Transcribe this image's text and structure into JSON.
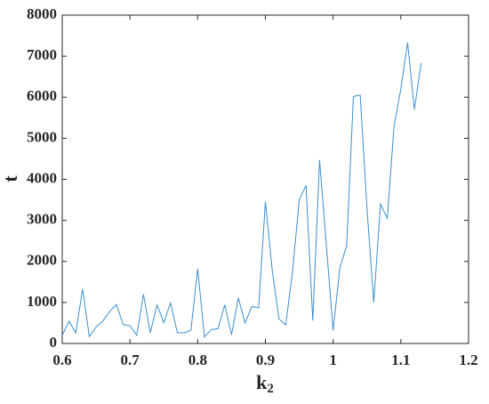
{
  "chart_data": {
    "type": "line",
    "xlabel": "k",
    "xlabel_subscript": "2",
    "ylabel": "t",
    "x": [
      0.6,
      0.61,
      0.62,
      0.63,
      0.64,
      0.65,
      0.66,
      0.67,
      0.68,
      0.69,
      0.7,
      0.71,
      0.72,
      0.73,
      0.74,
      0.75,
      0.76,
      0.77,
      0.78,
      0.79,
      0.8,
      0.81,
      0.82,
      0.83,
      0.84,
      0.85,
      0.86,
      0.87,
      0.88,
      0.89,
      0.9,
      0.91,
      0.92,
      0.93,
      0.94,
      0.95,
      0.96,
      0.97,
      0.98,
      0.99,
      1.0,
      1.01,
      1.02,
      1.03,
      1.04,
      1.05,
      1.06,
      1.07,
      1.08,
      1.09,
      1.1,
      1.11,
      1.12,
      1.13
    ],
    "series": [
      {
        "color": "#3a8fd0",
        "values": [
          200,
          540,
          260,
          1330,
          170,
          400,
          550,
          780,
          950,
          460,
          430,
          200,
          1200,
          260,
          940,
          510,
          990,
          260,
          260,
          320,
          1820,
          160,
          340,
          360,
          940,
          210,
          1110,
          500,
          900,
          870,
          3450,
          1800,
          600,
          450,
          1750,
          3500,
          3850,
          560,
          4470,
          2400,
          320,
          1850,
          2380,
          6020,
          6050,
          3300,
          1000,
          3400,
          3050,
          5300,
          6200,
          7330,
          5700,
          6830
        ]
      }
    ],
    "xlim": [
      0.6,
      1.2
    ],
    "xticks": [
      0.6,
      0.7,
      0.8,
      0.9,
      1,
      1.1,
      1.2
    ],
    "ylim": [
      0,
      8000
    ],
    "yticks": [
      0,
      1000,
      2000,
      3000,
      4000,
      5000,
      6000,
      7000,
      8000
    ]
  }
}
